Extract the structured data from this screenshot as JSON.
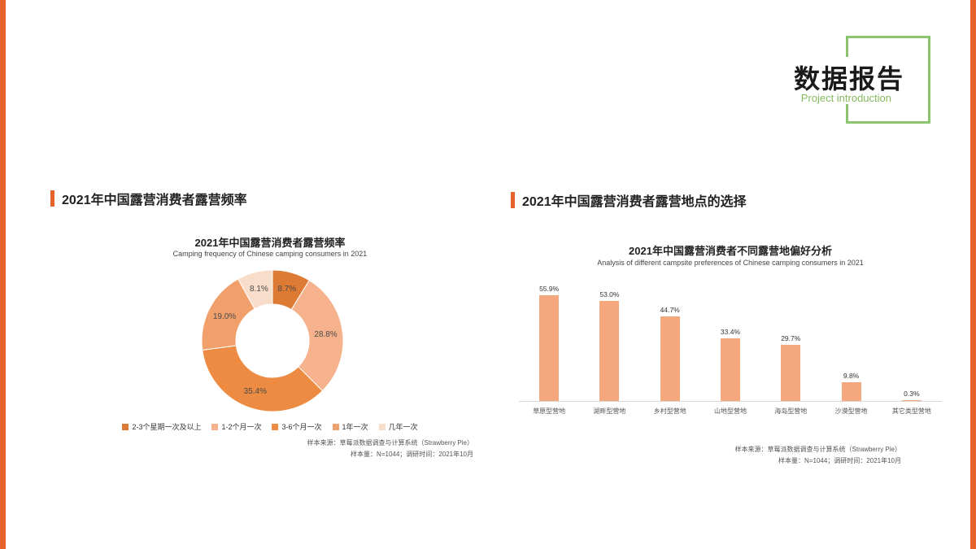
{
  "theme": {
    "accent_orange": "#E8632C",
    "accent_green": "#8CC36F"
  },
  "header": {
    "title": "数据报告",
    "subtitle": "Project introduction"
  },
  "sections": {
    "left": {
      "heading": "2021年中国露营消费者露营频率",
      "chart_title": "2021年中国露营消费者露营频率",
      "chart_subtitle": "Camping frequency of Chinese camping consumers in 2021",
      "source_line1": "样本来源：草莓派数据调查与计算系统（Strawberry Pie）",
      "source_line2": "样本量：N=1044；调研时间：2021年10月"
    },
    "right": {
      "heading": "2021年中国露营消费者露营地点的选择",
      "chart_title": "2021年中国露营消费者不同露营地偏好分析",
      "chart_subtitle": "Analysis of different campsite preferences of Chinese camping consumers in 2021",
      "source_line1": "样本来源：草莓派数据调查与计算系统（Strawberry Pie）",
      "source_line2": "样本量：N=1044；调研时间：2021年10月"
    }
  },
  "chart_data": [
    {
      "type": "pie",
      "style": "donut",
      "title": "2021年中国露营消费者露营频率",
      "subtitle": "Camping frequency of Chinese camping consumers in 2021",
      "labels": [
        "2-3个星期一次及以上",
        "1-2个月一次",
        "3-6个月一次",
        "1年一次",
        "几年一次"
      ],
      "values": [
        8.7,
        28.8,
        35.4,
        19.0,
        8.1
      ],
      "colors": [
        "#DD7A33",
        "#F6B28C",
        "#EC8B41",
        "#F2A06B",
        "#F8DDCB"
      ],
      "legend_position": "bottom",
      "value_suffix": "%"
    },
    {
      "type": "bar",
      "title": "2021年中国露营消费者不同露营地偏好分析",
      "subtitle": "Analysis of different campsite preferences of Chinese camping consumers in 2021",
      "categories": [
        "草原型营地",
        "湖畔型营地",
        "乡村型营地",
        "山地型营地",
        "海岛型营地",
        "沙漠型营地",
        "其它类型营地"
      ],
      "values": [
        55.9,
        53.0,
        44.7,
        33.4,
        29.7,
        9.8,
        0.3
      ],
      "ylim": [
        0,
        60
      ],
      "bar_color": "#F5A87E",
      "value_suffix": "%",
      "grid": false,
      "legend_position": "none"
    }
  ]
}
